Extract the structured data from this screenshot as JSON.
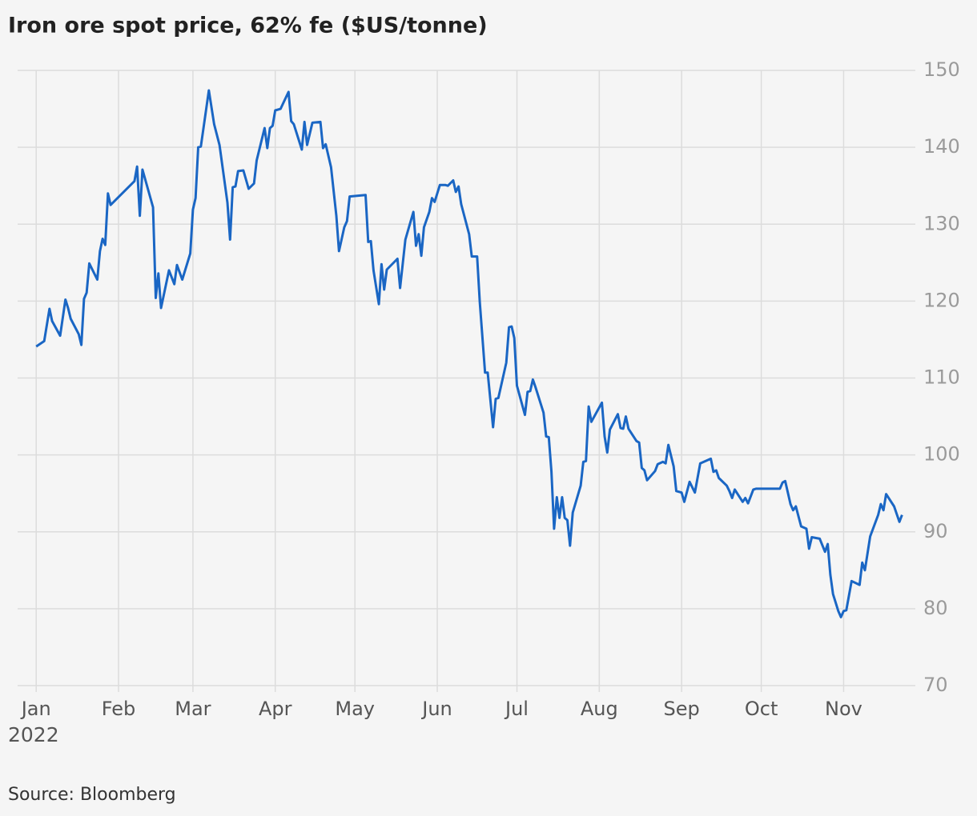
{
  "chart_data": {
    "type": "line",
    "title": "Iron ore spot price, 62% fe ($US/tonne)",
    "source": "Source: Bloomberg",
    "year_label": "2022",
    "x": [
      "2022-01-01",
      "2022-01-04",
      "2022-01-06",
      "2022-01-07",
      "2022-01-10",
      "2022-01-12",
      "2022-01-13",
      "2022-01-14",
      "2022-01-17",
      "2022-01-18",
      "2022-01-19",
      "2022-01-20",
      "2022-01-21",
      "2022-01-24",
      "2022-01-25",
      "2022-01-26",
      "2022-01-27",
      "2022-01-28",
      "2022-01-29",
      "2022-02-07",
      "2022-02-08",
      "2022-02-09",
      "2022-02-10",
      "2022-02-14",
      "2022-02-15",
      "2022-02-16",
      "2022-02-17",
      "2022-02-20",
      "2022-02-22",
      "2022-02-23",
      "2022-02-25",
      "2022-02-28",
      "2022-03-01",
      "2022-03-02",
      "2022-03-03",
      "2022-03-04",
      "2022-03-07",
      "2022-03-09",
      "2022-03-11",
      "2022-03-14",
      "2022-03-15",
      "2022-03-16",
      "2022-03-17",
      "2022-03-18",
      "2022-03-20",
      "2022-03-22",
      "2022-03-24",
      "2022-03-25",
      "2022-03-28",
      "2022-03-29",
      "2022-03-30",
      "2022-03-31",
      "2022-04-01",
      "2022-04-03",
      "2022-04-06",
      "2022-04-07",
      "2022-04-08",
      "2022-04-11",
      "2022-04-12",
      "2022-04-13",
      "2022-04-15",
      "2022-04-18",
      "2022-04-19",
      "2022-04-20",
      "2022-04-22",
      "2022-04-24",
      "2022-04-25",
      "2022-04-27",
      "2022-04-28",
      "2022-04-29",
      "2022-05-05",
      "2022-05-06",
      "2022-05-07",
      "2022-05-08",
      "2022-05-10",
      "2022-05-11",
      "2022-05-12",
      "2022-05-13",
      "2022-05-17",
      "2022-05-18",
      "2022-05-20",
      "2022-05-23",
      "2022-05-24",
      "2022-05-25",
      "2022-05-26",
      "2022-05-27",
      "2022-05-29",
      "2022-05-30",
      "2022-05-31",
      "2022-06-02",
      "2022-06-04",
      "2022-06-05",
      "2022-06-07",
      "2022-06-08",
      "2022-06-09",
      "2022-06-10",
      "2022-06-13",
      "2022-06-14",
      "2022-06-16",
      "2022-06-17",
      "2022-06-19",
      "2022-06-20",
      "2022-06-22",
      "2022-06-23",
      "2022-06-24",
      "2022-06-27",
      "2022-06-28",
      "2022-06-29",
      "2022-06-30",
      "2022-07-01",
      "2022-07-04",
      "2022-07-05",
      "2022-07-06",
      "2022-07-07",
      "2022-07-08",
      "2022-07-11",
      "2022-07-12",
      "2022-07-13",
      "2022-07-14",
      "2022-07-15",
      "2022-07-16",
      "2022-07-17",
      "2022-07-18",
      "2022-07-19",
      "2022-07-20",
      "2022-07-21",
      "2022-07-22",
      "2022-07-25",
      "2022-07-26",
      "2022-07-27",
      "2022-07-28",
      "2022-07-29",
      "2022-08-02",
      "2022-08-03",
      "2022-08-04",
      "2022-08-05",
      "2022-08-08",
      "2022-08-09",
      "2022-08-10",
      "2022-08-11",
      "2022-08-12",
      "2022-08-15",
      "2022-08-16",
      "2022-08-17",
      "2022-08-18",
      "2022-08-19",
      "2022-08-22",
      "2022-08-23",
      "2022-08-25",
      "2022-08-26",
      "2022-08-27",
      "2022-08-29",
      "2022-08-30",
      "2022-09-01",
      "2022-09-02",
      "2022-09-04",
      "2022-09-06",
      "2022-09-08",
      "2022-09-12",
      "2022-09-13",
      "2022-09-14",
      "2022-09-15",
      "2022-09-18",
      "2022-09-19",
      "2022-09-20",
      "2022-09-21",
      "2022-09-24",
      "2022-09-25",
      "2022-09-26",
      "2022-09-28",
      "2022-09-29",
      "2022-10-08",
      "2022-10-09",
      "2022-10-10",
      "2022-10-12",
      "2022-10-13",
      "2022-10-14",
      "2022-10-16",
      "2022-10-18",
      "2022-10-19",
      "2022-10-20",
      "2022-10-23",
      "2022-10-25",
      "2022-10-26",
      "2022-10-27",
      "2022-10-28",
      "2022-10-30",
      "2022-10-31",
      "2022-11-01",
      "2022-11-02",
      "2022-11-04",
      "2022-11-07",
      "2022-11-08",
      "2022-11-09",
      "2022-11-11",
      "2022-11-14",
      "2022-11-15",
      "2022-11-16",
      "2022-11-17",
      "2022-11-20",
      "2022-11-22",
      "2022-11-23"
    ],
    "series": [
      {
        "name": "Iron ore 62% fe",
        "color": "#1a66c4",
        "values": [
          114.1,
          114.8,
          119.0,
          117.4,
          115.5,
          120.2,
          119.1,
          117.7,
          115.7,
          114.3,
          120.3,
          121.1,
          124.9,
          122.8,
          126.5,
          128.1,
          127.3,
          134.0,
          132.5,
          135.6,
          137.5,
          131.1,
          137.1,
          132.2,
          120.4,
          123.6,
          119.1,
          124.0,
          122.2,
          124.7,
          122.8,
          126.2,
          131.9,
          133.4,
          140.0,
          140.1,
          147.4,
          143.0,
          140.3,
          132.8,
          128.0,
          134.8,
          134.9,
          136.9,
          137.0,
          134.6,
          135.3,
          138.3,
          142.5,
          139.9,
          142.5,
          142.8,
          144.8,
          145.0,
          147.2,
          143.4,
          143.0,
          139.7,
          143.3,
          140.3,
          143.2,
          143.3,
          139.9,
          140.4,
          137.4,
          131.1,
          126.5,
          129.6,
          130.4,
          133.6,
          133.8,
          127.7,
          127.8,
          124.0,
          119.6,
          124.8,
          121.5,
          124.1,
          125.5,
          121.7,
          128.0,
          131.6,
          127.2,
          128.7,
          125.9,
          129.6,
          131.6,
          133.4,
          132.9,
          135.1,
          135.1,
          135.0,
          135.7,
          134.2,
          134.9,
          132.6,
          128.7,
          125.8,
          125.8,
          119.9,
          110.7,
          110.7,
          103.6,
          107.3,
          107.4,
          112.0,
          116.6,
          116.7,
          115.2,
          109.0,
          105.2,
          108.2,
          108.3,
          109.8,
          108.8,
          105.5,
          102.4,
          102.3,
          97.8,
          90.4,
          94.5,
          91.8,
          94.5,
          91.8,
          91.5,
          88.2,
          92.5,
          96.0,
          99.1,
          99.2,
          106.3,
          104.3,
          106.8,
          102.4,
          100.3,
          103.3,
          105.3,
          103.5,
          103.4,
          105.0,
          103.4,
          101.8,
          101.6,
          98.3,
          98.0,
          96.7,
          97.9,
          98.8,
          99.1,
          98.9,
          101.3,
          98.5,
          95.3,
          95.1,
          93.9,
          96.5,
          95.1,
          98.9,
          99.5,
          97.8,
          98.0,
          97.0,
          96.0,
          95.3,
          94.4,
          95.5,
          93.9,
          94.4,
          93.7,
          95.5,
          95.6,
          95.6,
          96.4,
          96.6,
          93.6,
          92.8,
          93.3,
          90.7,
          90.4,
          87.8,
          89.3,
          89.1,
          87.4,
          88.4,
          84.4,
          81.9,
          79.7,
          78.9,
          79.7,
          79.8,
          83.6,
          83.1,
          86.0,
          85.0,
          89.4,
          92.2,
          93.6,
          92.8,
          94.9,
          93.3,
          91.3,
          92.2
        ]
      }
    ],
    "xlim": [
      "2021-12-25",
      "2022-11-28"
    ],
    "xticks": [
      {
        "value": "2022-01-01",
        "label": "Jan"
      },
      {
        "value": "2022-02-01",
        "label": "Feb"
      },
      {
        "value": "2022-03-01",
        "label": "Mar"
      },
      {
        "value": "2022-04-01",
        "label": "Apr"
      },
      {
        "value": "2022-05-01",
        "label": "May"
      },
      {
        "value": "2022-06-01",
        "label": "Jun"
      },
      {
        "value": "2022-07-01",
        "label": "Jul"
      },
      {
        "value": "2022-08-01",
        "label": "Aug"
      },
      {
        "value": "2022-09-01",
        "label": "Sep"
      },
      {
        "value": "2022-10-01",
        "label": "Oct"
      },
      {
        "value": "2022-11-01",
        "label": "Nov"
      }
    ],
    "ylim": [
      70,
      150
    ],
    "yticks": [
      70,
      80,
      90,
      100,
      110,
      120,
      130,
      140,
      150
    ],
    "grid": true
  }
}
